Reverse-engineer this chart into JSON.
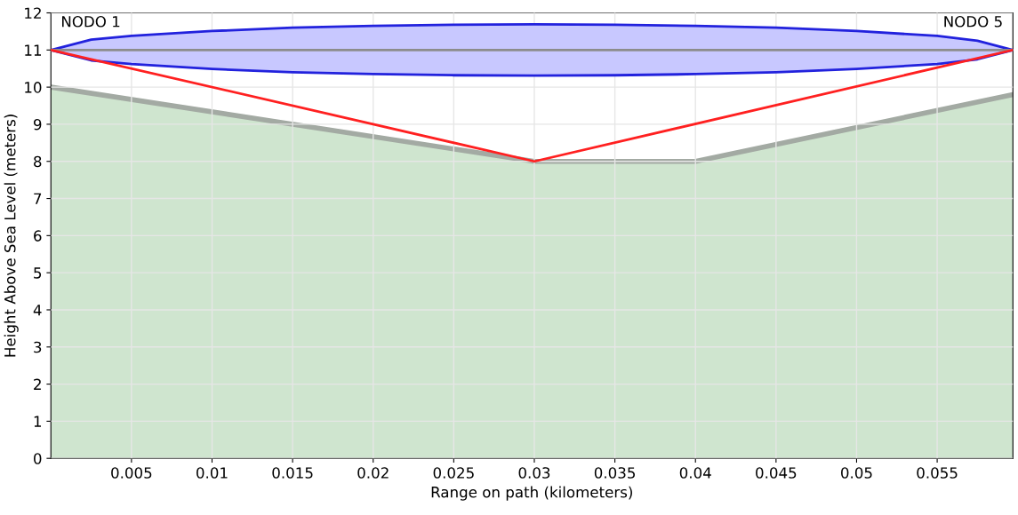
{
  "chart_data": {
    "type": "area",
    "xlabel": "Range on path (kilometers)",
    "ylabel": "Height Above Sea Level (meters)",
    "series": [
      {
        "color": "#cfe5cf",
        "x": [
          0,
          0.03,
          0.04,
          0.0597
        ],
        "values": [
          10,
          8,
          8,
          9.8
        ]
      },
      {
        "type": "line",
        "color": "#8c8c8c",
        "x": [
          0,
          0.0025,
          0.005,
          0.01,
          0.015,
          0.02,
          0.025,
          0.03,
          0.035,
          0.04,
          0.045,
          0.05,
          0.055,
          0.0575,
          0.0597
        ],
        "values": [
          11,
          11,
          11,
          11,
          11,
          11,
          11,
          11,
          11,
          11,
          11,
          11,
          11,
          11,
          11
        ],
        "lower": [
          11,
          10.72,
          10.62,
          10.49,
          10.4,
          10.35,
          10.32,
          10.31,
          10.32,
          10.35,
          10.4,
          10.49,
          10.62,
          10.75,
          11
        ],
        "upper": [
          11,
          11.28,
          11.38,
          11.51,
          11.6,
          11.65,
          11.68,
          11.69,
          11.68,
          11.65,
          11.6,
          11.51,
          11.38,
          11.25,
          11
        ]
      },
      {
        "type": "line",
        "color": "#ff2020",
        "x": [
          0,
          0.03,
          0.0597
        ],
        "values": [
          11,
          8,
          11
        ]
      }
    ],
    "annotations": [
      {
        "text": "NODO 1",
        "x": 0,
        "y": 11
      },
      {
        "text": "NODO 5",
        "x": 0.0597,
        "y": 11
      }
    ],
    "xlim": [
      0,
      0.0597
    ],
    "ylim": [
      0,
      12
    ],
    "xticks": [
      0.005,
      0.01,
      0.015,
      0.02,
      0.025,
      0.03,
      0.035,
      0.04,
      0.045,
      0.05,
      0.055
    ],
    "yticks": [
      0,
      1,
      2,
      3,
      4,
      5,
      6,
      7,
      8,
      9,
      10,
      11,
      12
    ],
    "grid": true
  }
}
